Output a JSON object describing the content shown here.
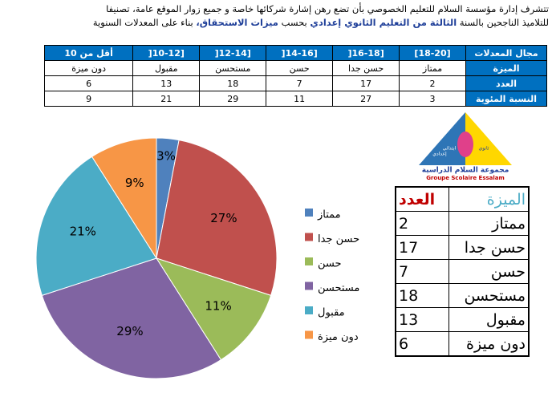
{
  "intro": {
    "lines": [
      [
        {
          "text": "تتشرف إدارة مؤسسة السلام للتعليم الخصوصي بأن تضع رهن إشارة شركائها خاصة و جميع زوار الموقع عامة، تصنيفا",
          "emphasis": false
        }
      ],
      [
        {
          "text": "للتلاميذ الناجحين بالسنة",
          "emphasis": false
        },
        {
          "text": "الثالثة من التعليم الثانوي إعدادي",
          "emphasis": true
        },
        {
          "text": "بحسب",
          "emphasis": false
        },
        {
          "text": "ميزات الاستحقاق،",
          "emphasis": true
        },
        {
          "text": "بناء على المعدلات السنوية",
          "emphasis": false
        }
      ]
    ]
  },
  "table": {
    "header": [
      "مجال المعدلات",
      "[18-20]",
      "[16-18[",
      "[14-16[",
      "[12-14[",
      "[10-12[",
      "أقل من 10"
    ],
    "rows": [
      {
        "label": "الميزة",
        "cells": [
          "ممتاز",
          "حسن جدا",
          "حسن",
          "مستحسن",
          "مقبول",
          "دون ميزة"
        ]
      },
      {
        "label": "العدد",
        "cells": [
          2,
          17,
          7,
          18,
          13,
          6
        ]
      },
      {
        "label": "النسبة المئوية",
        "cells": [
          3,
          27,
          11,
          29,
          21,
          9
        ]
      }
    ]
  },
  "logo": {
    "levels": [
      "ابتدائي",
      "إعدادي",
      "ثانوي"
    ],
    "title_ar": "مجموعة السلام الدراسية",
    "title_fr": "Groupe Scolaire Essalam"
  },
  "chart_data": {
    "type": "pie",
    "categories": [
      "ممتاز",
      "حسن جدا",
      "حسن",
      "مستحسن",
      "مقبول",
      "دون ميزة"
    ],
    "values": [
      3,
      27,
      11,
      29,
      21,
      9
    ],
    "value_labels": [
      "3%",
      "27%",
      "11%",
      "29%",
      "21%",
      "9%"
    ],
    "colors": [
      "#4f81bd",
      "#c0504d",
      "#9bbb59",
      "#8064a2",
      "#4bacc6",
      "#f79646"
    ],
    "legend": "right"
  },
  "side_table": {
    "header": [
      "الميزة",
      "العدد"
    ],
    "rows": [
      [
        "ممتاز",
        2
      ],
      [
        "حسن جدا",
        17
      ],
      [
        "حسن",
        7
      ],
      [
        "مستحسن",
        18
      ],
      [
        "مقبول",
        13
      ],
      [
        "دون ميزة",
        6
      ]
    ]
  }
}
